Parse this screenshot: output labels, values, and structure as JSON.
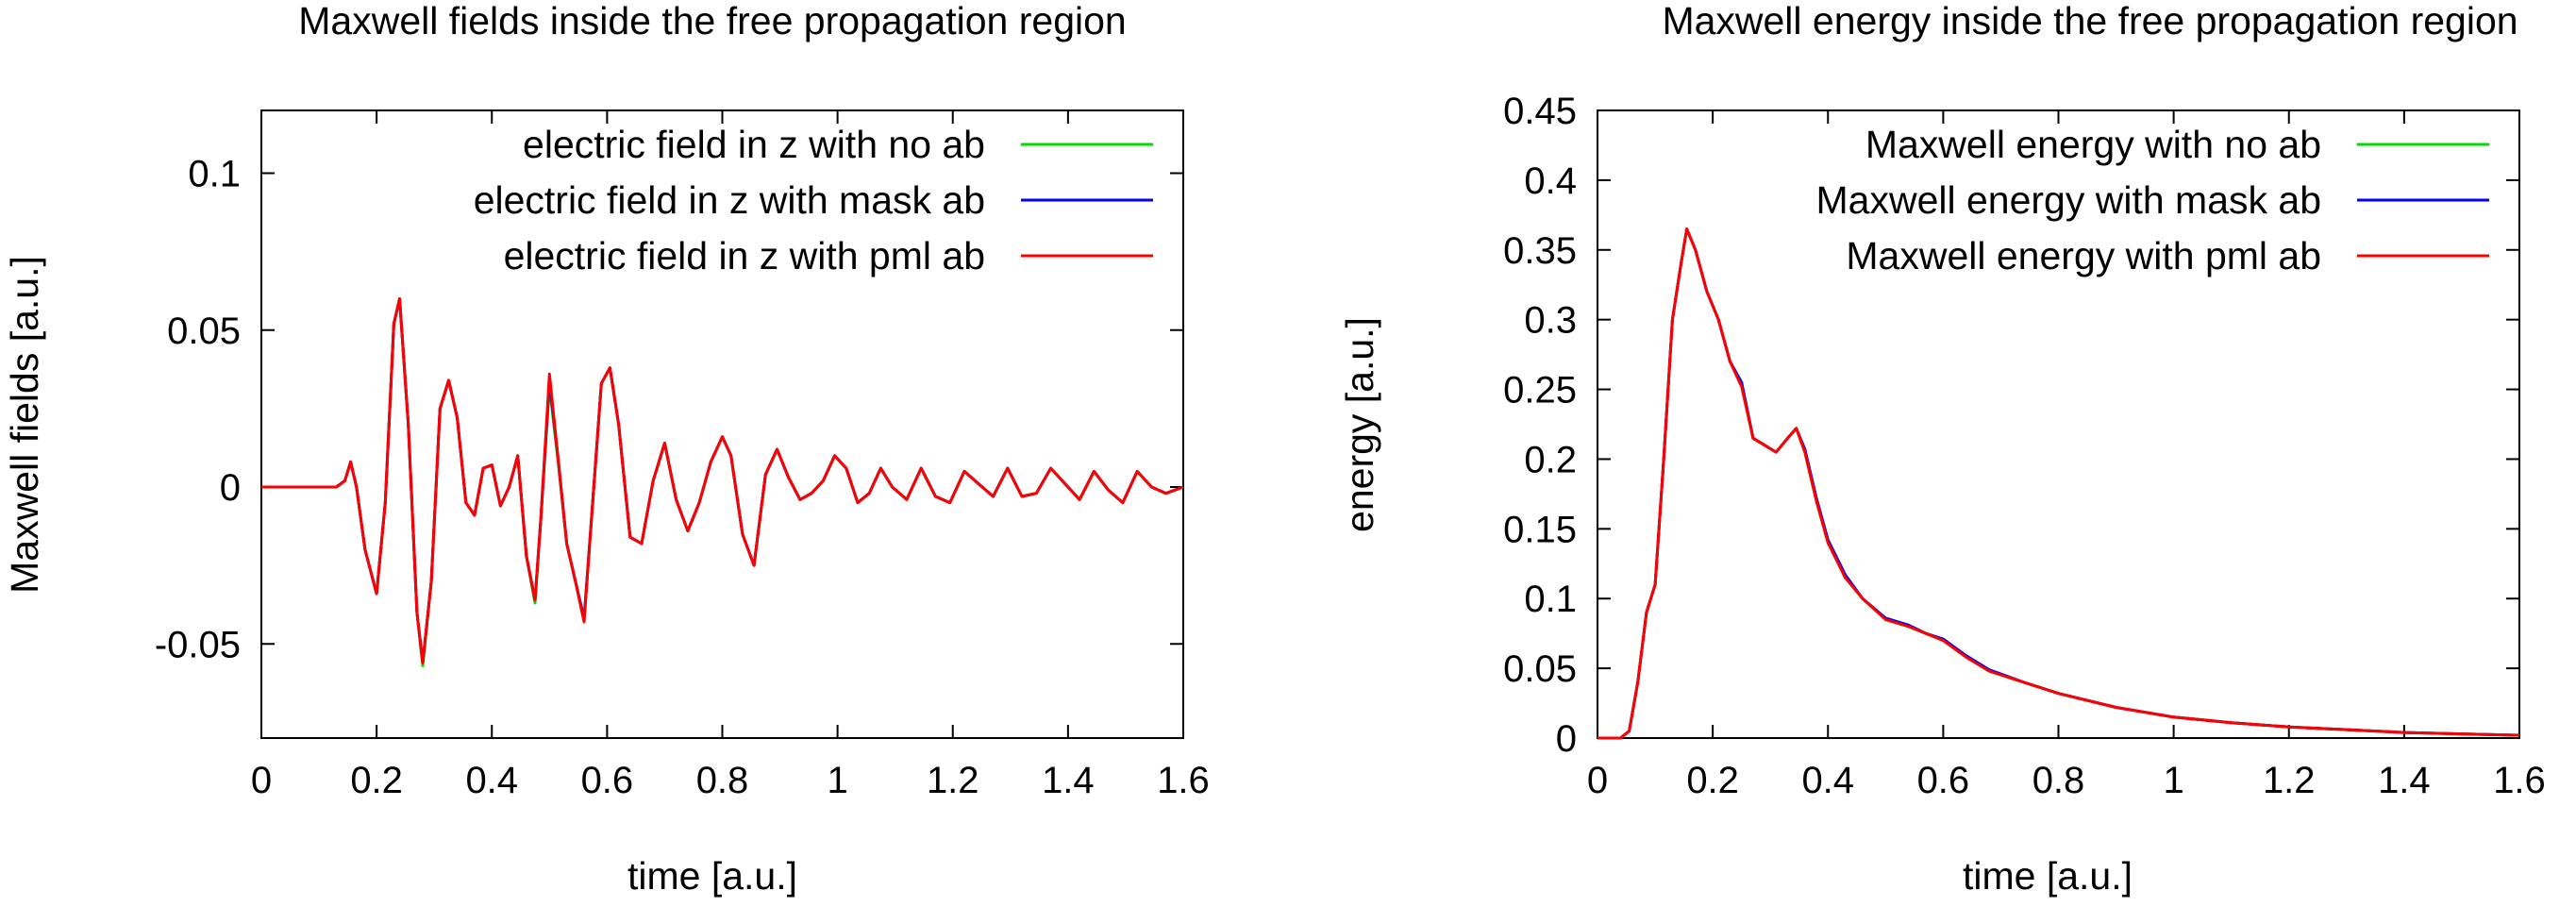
{
  "chart_data": [
    {
      "type": "line",
      "title": "Maxwell fields inside the free propagation region",
      "xlabel": "time [a.u.]",
      "ylabel": "Maxwell fields [a.u.]",
      "xlim": [
        0,
        1.6
      ],
      "ylim": [
        -0.08,
        0.12
      ],
      "xticks": [
        "0",
        "0.2",
        "0.4",
        "0.6",
        "0.8",
        "1",
        "1.2",
        "1.4",
        "1.6"
      ],
      "xtick_values": [
        0,
        0.2,
        0.4,
        0.6,
        0.8,
        1,
        1.2,
        1.4,
        1.6
      ],
      "yticks": [
        "0.1",
        "0.05",
        "0",
        "-0.05"
      ],
      "ytick_values": [
        0.1,
        0.05,
        0,
        -0.05
      ],
      "legend_position": "top-right",
      "grid": false,
      "x": [
        0,
        0.05,
        0.1,
        0.13,
        0.145,
        0.155,
        0.165,
        0.18,
        0.2,
        0.215,
        0.23,
        0.24,
        0.255,
        0.27,
        0.28,
        0.295,
        0.31,
        0.325,
        0.34,
        0.355,
        0.37,
        0.385,
        0.4,
        0.415,
        0.43,
        0.445,
        0.46,
        0.475,
        0.485,
        0.5,
        0.515,
        0.53,
        0.545,
        0.56,
        0.575,
        0.59,
        0.605,
        0.62,
        0.64,
        0.66,
        0.68,
        0.7,
        0.72,
        0.74,
        0.76,
        0.78,
        0.8,
        0.815,
        0.835,
        0.855,
        0.875,
        0.895,
        0.915,
        0.935,
        0.955,
        0.975,
        0.995,
        1.015,
        1.035,
        1.055,
        1.075,
        1.095,
        1.12,
        1.145,
        1.17,
        1.195,
        1.22,
        1.245,
        1.27,
        1.295,
        1.32,
        1.345,
        1.37,
        1.395,
        1.42,
        1.445,
        1.47,
        1.495,
        1.52,
        1.545,
        1.57,
        1.6
      ],
      "series": [
        {
          "name": "electric field in z with no ab",
          "color": "#00dd00",
          "values": [
            0,
            0,
            0,
            0,
            0.002,
            0.008,
            0,
            -0.02,
            -0.034,
            -0.005,
            0.052,
            0.06,
            0.02,
            -0.04,
            -0.057,
            -0.03,
            0.025,
            0.034,
            0.022,
            -0.005,
            -0.009,
            0.006,
            0.007,
            -0.006,
            0.0,
            0.01,
            -0.022,
            -0.037,
            -0.01,
            0.032,
            0.008,
            -0.018,
            -0.03,
            -0.042,
            -0.005,
            0.033,
            0.038,
            0.02,
            -0.016,
            -0.018,
            0.002,
            0.014,
            -0.004,
            -0.014,
            -0.005,
            0.008,
            0.016,
            0.01,
            -0.015,
            -0.025,
            0.004,
            0.012,
            0.003,
            -0.004,
            -0.002,
            0.002,
            0.01,
            0.006,
            -0.005,
            -0.002,
            0.006,
            0.0,
            -0.004,
            0.006,
            -0.003,
            -0.005,
            0.005,
            0.001,
            -0.003,
            0.006,
            -0.003,
            -0.002,
            0.006,
            0.001,
            -0.004,
            0.005,
            -0.001,
            -0.005,
            0.005,
            0.0,
            -0.002,
            0.0
          ]
        },
        {
          "name": "electric field in z with mask ab",
          "color": "#0000ff",
          "values": [
            0,
            0,
            0,
            0,
            0.002,
            0.008,
            0,
            -0.02,
            -0.034,
            -0.005,
            0.052,
            0.06,
            0.02,
            -0.04,
            -0.056,
            -0.03,
            0.025,
            0.034,
            0.022,
            -0.005,
            -0.009,
            0.006,
            0.007,
            -0.006,
            0.0,
            0.01,
            -0.022,
            -0.036,
            -0.01,
            0.034,
            0.009,
            -0.018,
            -0.03,
            -0.042,
            -0.005,
            0.033,
            0.038,
            0.02,
            -0.016,
            -0.018,
            0.002,
            0.014,
            -0.004,
            -0.014,
            -0.005,
            0.008,
            0.016,
            0.01,
            -0.015,
            -0.025,
            0.004,
            0.012,
            0.003,
            -0.004,
            -0.002,
            0.002,
            0.01,
            0.006,
            -0.005,
            -0.002,
            0.006,
            0.0,
            -0.004,
            0.006,
            -0.003,
            -0.005,
            0.005,
            0.001,
            -0.003,
            0.006,
            -0.003,
            -0.002,
            0.006,
            0.001,
            -0.004,
            0.005,
            -0.001,
            -0.005,
            0.005,
            0.0,
            -0.002,
            0.0
          ]
        },
        {
          "name": "electric field in z with pml ab",
          "color": "#ff0000",
          "values": [
            0,
            0,
            0,
            0,
            0.002,
            0.008,
            0,
            -0.02,
            -0.034,
            -0.005,
            0.052,
            0.06,
            0.02,
            -0.04,
            -0.056,
            -0.03,
            0.025,
            0.034,
            0.022,
            -0.005,
            -0.009,
            0.006,
            0.007,
            -0.006,
            0.0,
            0.01,
            -0.022,
            -0.036,
            -0.01,
            0.036,
            0.009,
            -0.018,
            -0.03,
            -0.043,
            -0.005,
            0.033,
            0.038,
            0.02,
            -0.016,
            -0.018,
            0.002,
            0.014,
            -0.004,
            -0.014,
            -0.005,
            0.008,
            0.016,
            0.01,
            -0.015,
            -0.025,
            0.004,
            0.012,
            0.003,
            -0.004,
            -0.002,
            0.002,
            0.01,
            0.006,
            -0.005,
            -0.002,
            0.006,
            0.0,
            -0.004,
            0.006,
            -0.003,
            -0.005,
            0.005,
            0.001,
            -0.003,
            0.006,
            -0.003,
            -0.002,
            0.006,
            0.001,
            -0.004,
            0.005,
            -0.001,
            -0.005,
            0.005,
            0.0,
            -0.002,
            0.0
          ]
        }
      ]
    },
    {
      "type": "line",
      "title": "Maxwell energy inside the free propagation region",
      "xlabel": "time [a.u.]",
      "ylabel": "energy [a.u.]",
      "xlim": [
        0,
        1.6
      ],
      "ylim": [
        0,
        0.45
      ],
      "xticks": [
        "0",
        "0.2",
        "0.4",
        "0.6",
        "0.8",
        "1",
        "1.2",
        "1.4",
        "1.6"
      ],
      "xtick_values": [
        0,
        0.2,
        0.4,
        0.6,
        0.8,
        1,
        1.2,
        1.4,
        1.6
      ],
      "yticks": [
        "0.45",
        "0.4",
        "0.35",
        "0.3",
        "0.25",
        "0.2",
        "0.15",
        "0.1",
        "0.05",
        "0"
      ],
      "ytick_values": [
        0.45,
        0.4,
        0.35,
        0.3,
        0.25,
        0.2,
        0.15,
        0.1,
        0.05,
        0
      ],
      "legend_position": "top-right",
      "grid": false,
      "x": [
        0,
        0.04,
        0.055,
        0.07,
        0.085,
        0.1,
        0.115,
        0.13,
        0.145,
        0.155,
        0.17,
        0.19,
        0.21,
        0.23,
        0.25,
        0.27,
        0.29,
        0.31,
        0.33,
        0.345,
        0.36,
        0.38,
        0.4,
        0.43,
        0.46,
        0.5,
        0.54,
        0.57,
        0.6,
        0.64,
        0.68,
        0.74,
        0.8,
        0.9,
        1.0,
        1.1,
        1.2,
        1.3,
        1.4,
        1.5,
        1.6
      ],
      "series": [
        {
          "name": "Maxwell energy with no ab",
          "color": "#00dd00",
          "values": [
            0,
            0,
            0.005,
            0.04,
            0.09,
            0.11,
            0.2,
            0.3,
            0.34,
            0.365,
            0.35,
            0.32,
            0.3,
            0.27,
            0.255,
            0.215,
            0.21,
            0.205,
            0.215,
            0.222,
            0.205,
            0.17,
            0.14,
            0.115,
            0.1,
            0.085,
            0.08,
            0.075,
            0.07,
            0.058,
            0.048,
            0.04,
            0.032,
            0.022,
            0.015,
            0.011,
            0.008,
            0.006,
            0.004,
            0.003,
            0.002
          ]
        },
        {
          "name": "Maxwell energy with mask ab",
          "color": "#0000ff",
          "values": [
            0,
            0,
            0.005,
            0.04,
            0.09,
            0.11,
            0.2,
            0.3,
            0.34,
            0.365,
            0.35,
            0.32,
            0.3,
            0.27,
            0.255,
            0.215,
            0.21,
            0.205,
            0.215,
            0.222,
            0.207,
            0.172,
            0.142,
            0.117,
            0.1,
            0.086,
            0.081,
            0.075,
            0.071,
            0.059,
            0.049,
            0.04,
            0.032,
            0.022,
            0.015,
            0.011,
            0.008,
            0.006,
            0.004,
            0.003,
            0.002
          ]
        },
        {
          "name": "Maxwell energy with pml ab",
          "color": "#ff0000",
          "values": [
            0,
            0,
            0.005,
            0.04,
            0.09,
            0.11,
            0.2,
            0.3,
            0.34,
            0.365,
            0.35,
            0.32,
            0.3,
            0.27,
            0.252,
            0.215,
            0.21,
            0.205,
            0.215,
            0.222,
            0.205,
            0.17,
            0.14,
            0.115,
            0.1,
            0.085,
            0.08,
            0.075,
            0.07,
            0.058,
            0.048,
            0.04,
            0.032,
            0.022,
            0.015,
            0.011,
            0.008,
            0.006,
            0.004,
            0.003,
            0.002
          ]
        }
      ]
    }
  ]
}
